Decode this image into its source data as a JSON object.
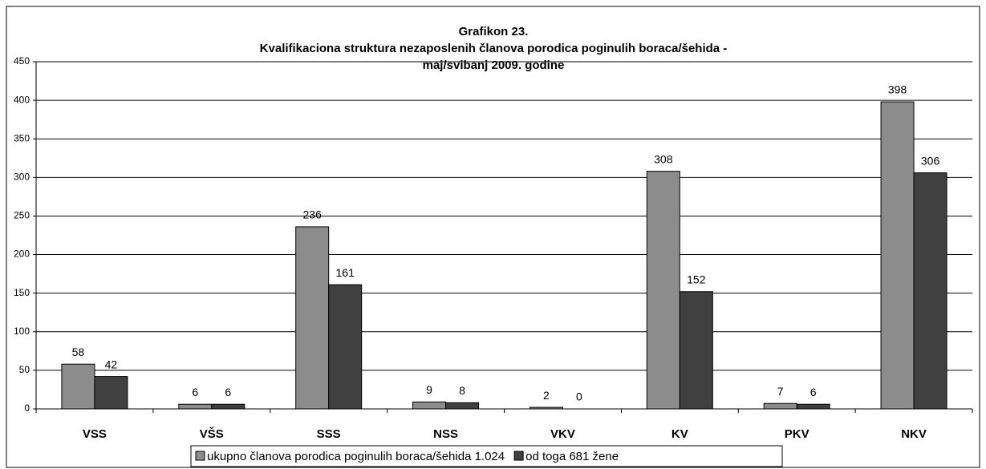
{
  "chart_data": {
    "type": "bar",
    "title": [
      "Grafikon 23.",
      "Kvalifikaciona struktura nezaposlenih članova porodica poginulih boraca/šehida  -",
      "maj/svibanj 2009. godine"
    ],
    "categories": [
      "VSS",
      "VŠS",
      "SSS",
      "NSS",
      "VKV",
      "KV",
      "PKV",
      "NKV"
    ],
    "series": [
      {
        "name": "ukupno članova porodica poginulih boraca/šehida 1.024",
        "color": "#8c8c8c",
        "values": [
          58,
          6,
          236,
          9,
          2,
          308,
          7,
          398
        ]
      },
      {
        "name": "od toga 681 žene",
        "color": "#404040",
        "values": [
          42,
          6,
          161,
          8,
          0,
          152,
          6,
          306
        ]
      }
    ],
    "ylim": [
      0,
      450
    ],
    "yticks": [
      0,
      50,
      100,
      150,
      200,
      250,
      300,
      350,
      400,
      450
    ],
    "grid": true,
    "legend": "bottom"
  }
}
